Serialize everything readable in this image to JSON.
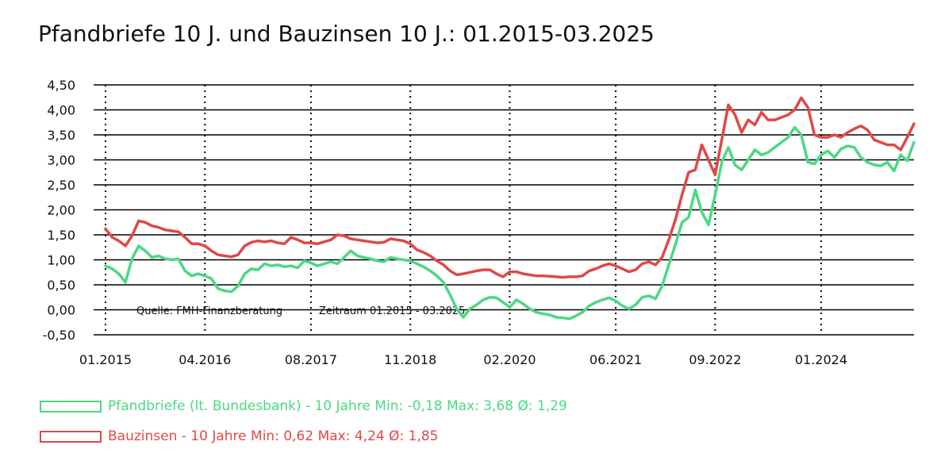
{
  "chart_data": {
    "type": "line",
    "title": "Pfandbriefe 10 J. und Bauzinsen 10 J.: 01.2015-03.2025",
    "xlabel": "",
    "ylabel": "",
    "ylim": [
      -0.5,
      4.5
    ],
    "xlim": [
      "2015-01",
      "2025-03"
    ],
    "yticks": [
      -0.5,
      0,
      0.5,
      1,
      1.5,
      2,
      2.5,
      3,
      3.5,
      4,
      4.5
    ],
    "ytick_labels": [
      "-0,50",
      "0,00",
      "0,50",
      "1,00",
      "1,50",
      "2,00",
      "2,50",
      "3,00",
      "3,50",
      "4,00",
      "4,50"
    ],
    "xticks": [
      "2015-01",
      "2016-04",
      "2017-08",
      "2018-11",
      "2020-02",
      "2021-06",
      "2022-09",
      "2024-01"
    ],
    "xtick_labels": [
      "01.2015",
      "04.2016",
      "08.2017",
      "11.2018",
      "02.2020",
      "06.2021",
      "09.2022",
      "01.2024"
    ],
    "grid": {
      "horizontal": "solid",
      "vertical": "dotted"
    },
    "annotations": [
      "Quelle: FMH-Finanzberatung",
      "Zeitraum 01.2015 - 03.2025"
    ],
    "x": [
      "2015-01",
      "2015-02",
      "2015-03",
      "2015-04",
      "2015-05",
      "2015-06",
      "2015-07",
      "2015-08",
      "2015-09",
      "2015-10",
      "2015-11",
      "2015-12",
      "2016-01",
      "2016-02",
      "2016-03",
      "2016-04",
      "2016-05",
      "2016-06",
      "2016-07",
      "2016-08",
      "2016-09",
      "2016-10",
      "2016-11",
      "2016-12",
      "2017-01",
      "2017-02",
      "2017-03",
      "2017-04",
      "2017-05",
      "2017-06",
      "2017-07",
      "2017-08",
      "2017-09",
      "2017-10",
      "2017-11",
      "2017-12",
      "2018-01",
      "2018-02",
      "2018-03",
      "2018-04",
      "2018-05",
      "2018-06",
      "2018-07",
      "2018-08",
      "2018-09",
      "2018-10",
      "2018-11",
      "2018-12",
      "2019-01",
      "2019-02",
      "2019-03",
      "2019-04",
      "2019-05",
      "2019-06",
      "2019-07",
      "2019-08",
      "2019-09",
      "2019-10",
      "2019-11",
      "2019-12",
      "2020-01",
      "2020-02",
      "2020-03",
      "2020-04",
      "2020-05",
      "2020-06",
      "2020-07",
      "2020-08",
      "2020-09",
      "2020-10",
      "2020-11",
      "2020-12",
      "2021-01",
      "2021-02",
      "2021-03",
      "2021-04",
      "2021-05",
      "2021-06",
      "2021-07",
      "2021-08",
      "2021-09",
      "2021-10",
      "2021-11",
      "2021-12",
      "2022-01",
      "2022-02",
      "2022-03",
      "2022-04",
      "2022-05",
      "2022-06",
      "2022-07",
      "2022-08",
      "2022-09",
      "2022-10",
      "2022-11",
      "2022-12",
      "2023-01",
      "2023-02",
      "2023-03",
      "2023-04",
      "2023-05",
      "2023-06",
      "2023-07",
      "2023-08",
      "2023-09",
      "2023-10",
      "2023-11",
      "2023-12",
      "2024-01",
      "2024-02",
      "2024-03",
      "2024-04",
      "2024-05",
      "2024-06",
      "2024-07",
      "2024-08",
      "2024-09",
      "2024-10",
      "2024-11",
      "2024-12",
      "2025-01",
      "2025-02",
      "2025-03"
    ],
    "series": [
      {
        "name": "Pfandbriefe (lt. Bundesbank) - 10 Jahre",
        "legend": "Pfandbriefe (lt. Bundesbank) - 10 Jahre Min: -0,18 Max: 3,68 Ø: 1,29",
        "color": "#4cd884",
        "values": [
          0.88,
          0.82,
          0.72,
          0.55,
          1.02,
          1.28,
          1.18,
          1.05,
          1.08,
          1.02,
          1.0,
          1.02,
          0.78,
          0.68,
          0.72,
          0.68,
          0.62,
          0.42,
          0.38,
          0.36,
          0.48,
          0.72,
          0.82,
          0.8,
          0.92,
          0.88,
          0.9,
          0.86,
          0.88,
          0.84,
          0.98,
          0.94,
          0.88,
          0.92,
          0.96,
          0.92,
          1.05,
          1.18,
          1.08,
          1.05,
          1.02,
          0.98,
          0.96,
          1.05,
          1.02,
          1.0,
          0.98,
          0.92,
          0.86,
          0.78,
          0.68,
          0.55,
          0.3,
          0.02,
          -0.15,
          0.02,
          0.1,
          0.2,
          0.25,
          0.24,
          0.15,
          0.05,
          0.2,
          0.12,
          0.02,
          -0.05,
          -0.08,
          -0.1,
          -0.15,
          -0.16,
          -0.18,
          -0.12,
          -0.05,
          0.08,
          0.15,
          0.2,
          0.24,
          0.18,
          0.08,
          0.02,
          0.1,
          0.25,
          0.28,
          0.22,
          0.48,
          0.9,
          1.3,
          1.75,
          1.85,
          2.4,
          1.95,
          1.7,
          2.3,
          2.95,
          3.25,
          2.9,
          2.8,
          3.0,
          3.2,
          3.1,
          3.15,
          3.25,
          3.35,
          3.45,
          3.65,
          3.5,
          2.95,
          2.92,
          3.1,
          3.18,
          3.05,
          3.22,
          3.28,
          3.25,
          3.05,
          2.95,
          2.9,
          2.88,
          2.95,
          2.78,
          3.1,
          2.98,
          3.35
        ]
      },
      {
        "name": "Bauzinsen - 10 Jahre",
        "legend": "Bauzinsen - 10 Jahre Min: 0,62 Max: 4,24 Ø: 1,85",
        "color": "#e04848",
        "values": [
          1.62,
          1.45,
          1.38,
          1.28,
          1.48,
          1.78,
          1.75,
          1.68,
          1.65,
          1.6,
          1.58,
          1.56,
          1.45,
          1.32,
          1.32,
          1.28,
          1.18,
          1.1,
          1.08,
          1.06,
          1.1,
          1.28,
          1.35,
          1.38,
          1.36,
          1.38,
          1.34,
          1.32,
          1.45,
          1.4,
          1.34,
          1.34,
          1.32,
          1.36,
          1.4,
          1.5,
          1.48,
          1.42,
          1.4,
          1.38,
          1.36,
          1.34,
          1.35,
          1.42,
          1.4,
          1.38,
          1.32,
          1.2,
          1.15,
          1.08,
          0.98,
          0.9,
          0.78,
          0.7,
          0.72,
          0.75,
          0.78,
          0.8,
          0.8,
          0.72,
          0.66,
          0.76,
          0.76,
          0.72,
          0.7,
          0.68,
          0.68,
          0.67,
          0.66,
          0.65,
          0.66,
          0.66,
          0.68,
          0.78,
          0.82,
          0.88,
          0.92,
          0.88,
          0.82,
          0.76,
          0.8,
          0.92,
          0.96,
          0.9,
          1.05,
          1.4,
          1.8,
          2.3,
          2.75,
          2.8,
          3.3,
          3.0,
          2.7,
          3.4,
          4.1,
          3.9,
          3.55,
          3.8,
          3.7,
          3.95,
          3.8,
          3.8,
          3.85,
          3.9,
          4.0,
          4.24,
          4.05,
          3.5,
          3.45,
          3.45,
          3.5,
          3.45,
          3.55,
          3.62,
          3.68,
          3.6,
          3.4,
          3.35,
          3.3,
          3.3,
          3.2,
          3.45,
          3.72
        ]
      }
    ]
  }
}
